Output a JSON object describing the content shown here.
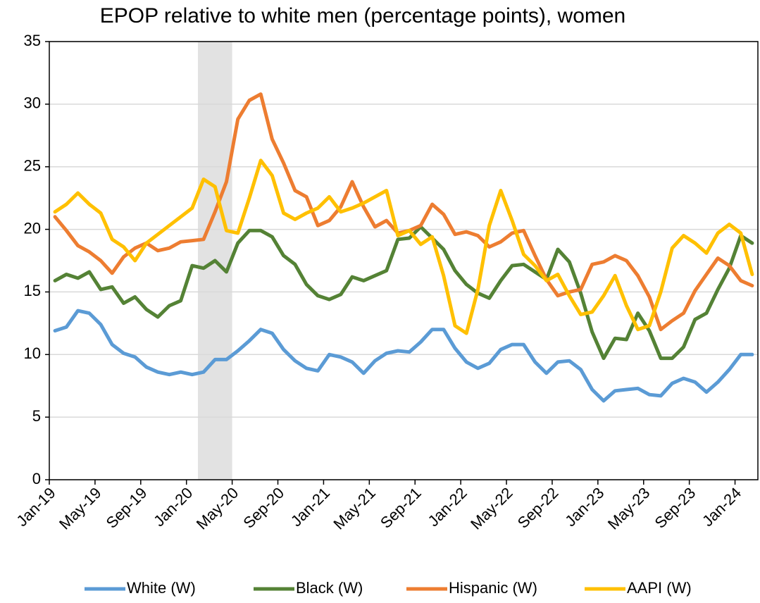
{
  "chart_data": {
    "type": "line",
    "title": "EPOP relative to white men (percentage points), women",
    "categories": [
      "Jan-19",
      null,
      null,
      null,
      "May-19",
      null,
      null,
      null,
      "Sep-19",
      null,
      null,
      null,
      "Jan-20",
      null,
      null,
      null,
      "May-20",
      null,
      null,
      null,
      "Sep-20",
      null,
      null,
      null,
      "Jan-21",
      null,
      null,
      null,
      "May-21",
      null,
      null,
      null,
      "Sep-21",
      null,
      null,
      null,
      "Jan-22",
      null,
      null,
      null,
      "May-22",
      null,
      null,
      null,
      "Sep-22",
      null,
      null,
      null,
      "Jan-23",
      null,
      null,
      null,
      "May-23",
      null,
      null,
      null,
      "Sep-23",
      null,
      null,
      null,
      "Jan-24",
      null
    ],
    "series": [
      {
        "name": "White (W)",
        "color": "#5b9bd5",
        "values": [
          11.9,
          12.2,
          13.5,
          13.3,
          12.4,
          10.8,
          10.1,
          9.8,
          9.0,
          8.6,
          8.4,
          8.6,
          8.4,
          8.6,
          9.6,
          9.6,
          10.3,
          11.1,
          12.0,
          11.7,
          10.4,
          9.5,
          8.9,
          8.7,
          10.0,
          9.8,
          9.4,
          8.5,
          9.5,
          10.1,
          10.3,
          10.2,
          11.0,
          12.0,
          12.0,
          10.5,
          9.4,
          8.9,
          9.3,
          10.4,
          10.8,
          10.8,
          9.4,
          8.5,
          9.4,
          9.5,
          8.8,
          7.2,
          6.3,
          7.1,
          7.2,
          7.3,
          6.8,
          6.7,
          7.7,
          8.1,
          7.8,
          7.0,
          7.8,
          8.8,
          10.0,
          10.0
        ]
      },
      {
        "name": "Black (W)",
        "color": "#548235",
        "values": [
          15.9,
          16.4,
          16.1,
          16.6,
          15.2,
          15.4,
          14.1,
          14.6,
          13.6,
          13.0,
          13.9,
          14.3,
          17.1,
          16.9,
          17.5,
          16.6,
          18.9,
          19.9,
          19.9,
          19.4,
          17.9,
          17.2,
          15.6,
          14.7,
          14.4,
          14.8,
          16.2,
          15.9,
          16.3,
          16.7,
          19.2,
          19.3,
          20.2,
          19.3,
          18.4,
          16.7,
          15.6,
          14.9,
          14.5,
          15.9,
          17.1,
          17.2,
          16.6,
          16.0,
          18.4,
          17.4,
          14.9,
          11.8,
          9.7,
          11.3,
          11.2,
          13.3,
          11.9,
          9.7,
          9.7,
          10.6,
          12.8,
          13.3,
          15.2,
          16.9,
          19.5,
          18.9
        ]
      },
      {
        "name": "Hispanic (W)",
        "color": "#ed7d31",
        "values": [
          21.0,
          19.9,
          18.7,
          18.2,
          17.5,
          16.5,
          17.8,
          18.5,
          18.9,
          18.3,
          18.5,
          19.0,
          19.1,
          19.2,
          21.4,
          23.8,
          28.8,
          30.3,
          30.8,
          27.2,
          25.3,
          23.1,
          22.6,
          20.3,
          20.7,
          21.8,
          23.8,
          21.8,
          20.2,
          20.7,
          19.7,
          19.9,
          20.3,
          22.0,
          21.2,
          19.6,
          19.8,
          19.5,
          18.6,
          19.0,
          19.7,
          19.9,
          17.9,
          16.0,
          14.7,
          15.0,
          15.2,
          17.2,
          17.4,
          17.9,
          17.5,
          16.3,
          14.6,
          12.0,
          12.7,
          13.3,
          15.1,
          16.4,
          17.7,
          17.1,
          15.9,
          15.5
        ]
      },
      {
        "name": "AAPI (W)",
        "color": "#ffc000",
        "values": [
          21.4,
          22.0,
          22.9,
          22.0,
          21.3,
          19.2,
          18.6,
          17.5,
          18.9,
          19.6,
          20.3,
          21.0,
          21.7,
          24.0,
          23.4,
          19.9,
          19.7,
          22.5,
          25.5,
          24.3,
          21.3,
          20.8,
          21.3,
          21.7,
          22.6,
          21.4,
          21.7,
          22.1,
          22.6,
          23.1,
          19.5,
          19.9,
          18.8,
          19.4,
          16.3,
          12.3,
          11.7,
          15.2,
          20.3,
          23.1,
          20.7,
          18.0,
          17.1,
          15.9,
          16.4,
          14.7,
          13.2,
          13.4,
          14.7,
          16.3,
          13.9,
          12.0,
          12.3,
          15.0,
          18.5,
          19.5,
          18.9,
          18.1,
          19.7,
          20.4,
          19.7,
          16.4
        ]
      }
    ],
    "ylim": [
      0,
      35
    ],
    "yticks": [
      0,
      5,
      10,
      15,
      20,
      25,
      30,
      35
    ],
    "grid": true,
    "shaded_categories": [
      13,
      15
    ],
    "legend": "bottom"
  }
}
